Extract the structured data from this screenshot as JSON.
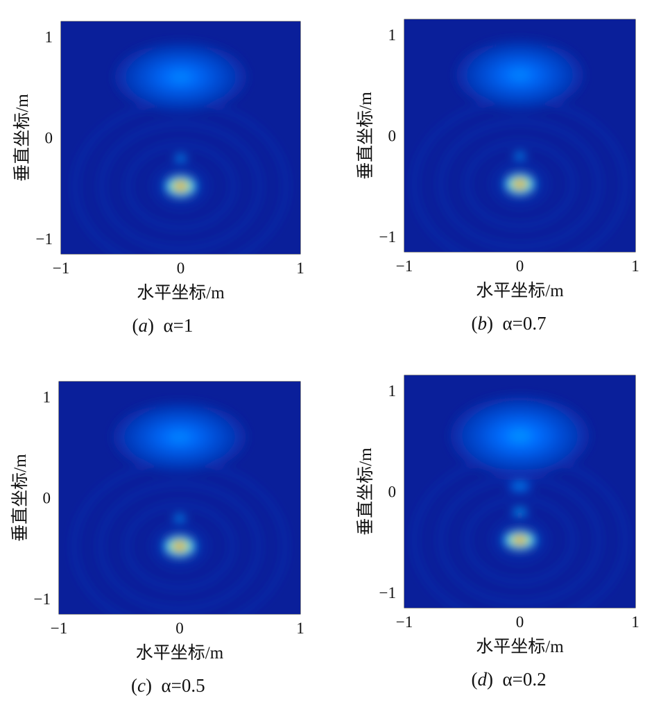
{
  "chart_data": [
    {
      "type": "heatmap",
      "caption_letter": "a",
      "caption_value": "α=1",
      "xlabel": "水平坐标/m",
      "ylabel": "垂直坐标/m",
      "xlim": [
        -1,
        1
      ],
      "ylim": [
        -1.15,
        1.15
      ],
      "xticks": [
        "−1",
        "0",
        "1"
      ],
      "yticks": [
        "−1",
        "0",
        "1"
      ],
      "colormap": "jet",
      "blobs": [
        {
          "x": 0,
          "y": 0.6,
          "rx": 0.55,
          "ry": 0.35,
          "intensity": 0.28
        },
        {
          "x": 0,
          "y": -0.2,
          "rx": 0.06,
          "ry": 0.04,
          "intensity": 0.45
        },
        {
          "x": 0,
          "y": -0.48,
          "rx": 0.15,
          "ry": 0.12,
          "intensity": 1.0
        }
      ]
    },
    {
      "type": "heatmap",
      "caption_letter": "b",
      "caption_value": "α=0.7",
      "xlabel": "水平坐标/m",
      "ylabel": "垂直坐标/m",
      "xlim": [
        -1,
        1
      ],
      "ylim": [
        -1.15,
        1.15
      ],
      "xticks": [
        "−1",
        "0",
        "1"
      ],
      "yticks": [
        "−1",
        "0",
        "1"
      ],
      "colormap": "jet",
      "blobs": [
        {
          "x": 0,
          "y": 0.6,
          "rx": 0.55,
          "ry": 0.35,
          "intensity": 0.28
        },
        {
          "x": 0,
          "y": -0.2,
          "rx": 0.06,
          "ry": 0.04,
          "intensity": 0.45
        },
        {
          "x": 0,
          "y": -0.48,
          "rx": 0.15,
          "ry": 0.12,
          "intensity": 1.0
        }
      ]
    },
    {
      "type": "heatmap",
      "caption_letter": "c",
      "caption_value": "α=0.5",
      "xlabel": "水平坐标/m",
      "ylabel": "垂直坐标/m",
      "xlim": [
        -1,
        1
      ],
      "ylim": [
        -1.15,
        1.15
      ],
      "xticks": [
        "−1",
        "0",
        "1"
      ],
      "yticks": [
        "−1",
        "0",
        "1"
      ],
      "colormap": "jet",
      "blobs": [
        {
          "x": 0,
          "y": 0.6,
          "rx": 0.55,
          "ry": 0.35,
          "intensity": 0.28
        },
        {
          "x": 0,
          "y": -0.2,
          "rx": 0.06,
          "ry": 0.04,
          "intensity": 0.45
        },
        {
          "x": 0,
          "y": -0.48,
          "rx": 0.15,
          "ry": 0.12,
          "intensity": 1.0
        }
      ]
    },
    {
      "type": "heatmap",
      "caption_letter": "d",
      "caption_value": "α=0.2",
      "xlabel": "水平坐标/m",
      "ylabel": "垂直坐标/m",
      "xlim": [
        -1,
        1
      ],
      "ylim": [
        -1.15,
        1.15
      ],
      "xticks": [
        "−1",
        "0",
        "1"
      ],
      "yticks": [
        "−1",
        "0",
        "1"
      ],
      "colormap": "jet",
      "blobs": [
        {
          "x": 0,
          "y": 0.55,
          "rx": 0.6,
          "ry": 0.4,
          "intensity": 0.3
        },
        {
          "x": 0,
          "y": 0.05,
          "rx": 0.12,
          "ry": 0.05,
          "intensity": 0.38
        },
        {
          "x": 0,
          "y": -0.2,
          "rx": 0.08,
          "ry": 0.04,
          "intensity": 0.5
        },
        {
          "x": 0,
          "y": -0.48,
          "rx": 0.16,
          "ry": 0.11,
          "intensity": 1.0
        }
      ]
    }
  ]
}
